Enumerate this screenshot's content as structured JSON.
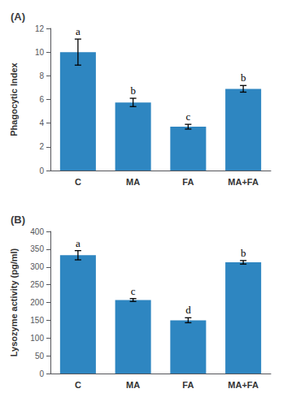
{
  "chart_data": [
    {
      "type": "bar",
      "title": "(A)",
      "categories": [
        "C",
        "MA",
        "FA",
        "MA+FA"
      ],
      "values": [
        10.0,
        5.75,
        3.7,
        6.9
      ],
      "errors": [
        1.1,
        0.35,
        0.2,
        0.28
      ],
      "annotations": [
        "a",
        "b",
        "c",
        "b"
      ],
      "ylabel": "Phagocytic Index",
      "ylim": [
        0,
        12
      ],
      "yticks": [
        0,
        2,
        4,
        6,
        8,
        10,
        12
      ],
      "color": "#2e86c1",
      "grid": false
    },
    {
      "type": "bar",
      "title": "(B)",
      "categories": [
        "C",
        "MA",
        "FA",
        "MA+FA"
      ],
      "values": [
        333,
        207,
        150,
        313
      ],
      "errors": [
        13,
        4,
        7,
        5
      ],
      "annotations": [
        "a",
        "c",
        "d",
        "b"
      ],
      "ylabel": "Lysozyme activity (pg/ml)",
      "ylim": [
        0,
        400
      ],
      "yticks": [
        0,
        50,
        100,
        150,
        200,
        250,
        300,
        350,
        400
      ],
      "color": "#2e86c1",
      "grid": false
    }
  ]
}
